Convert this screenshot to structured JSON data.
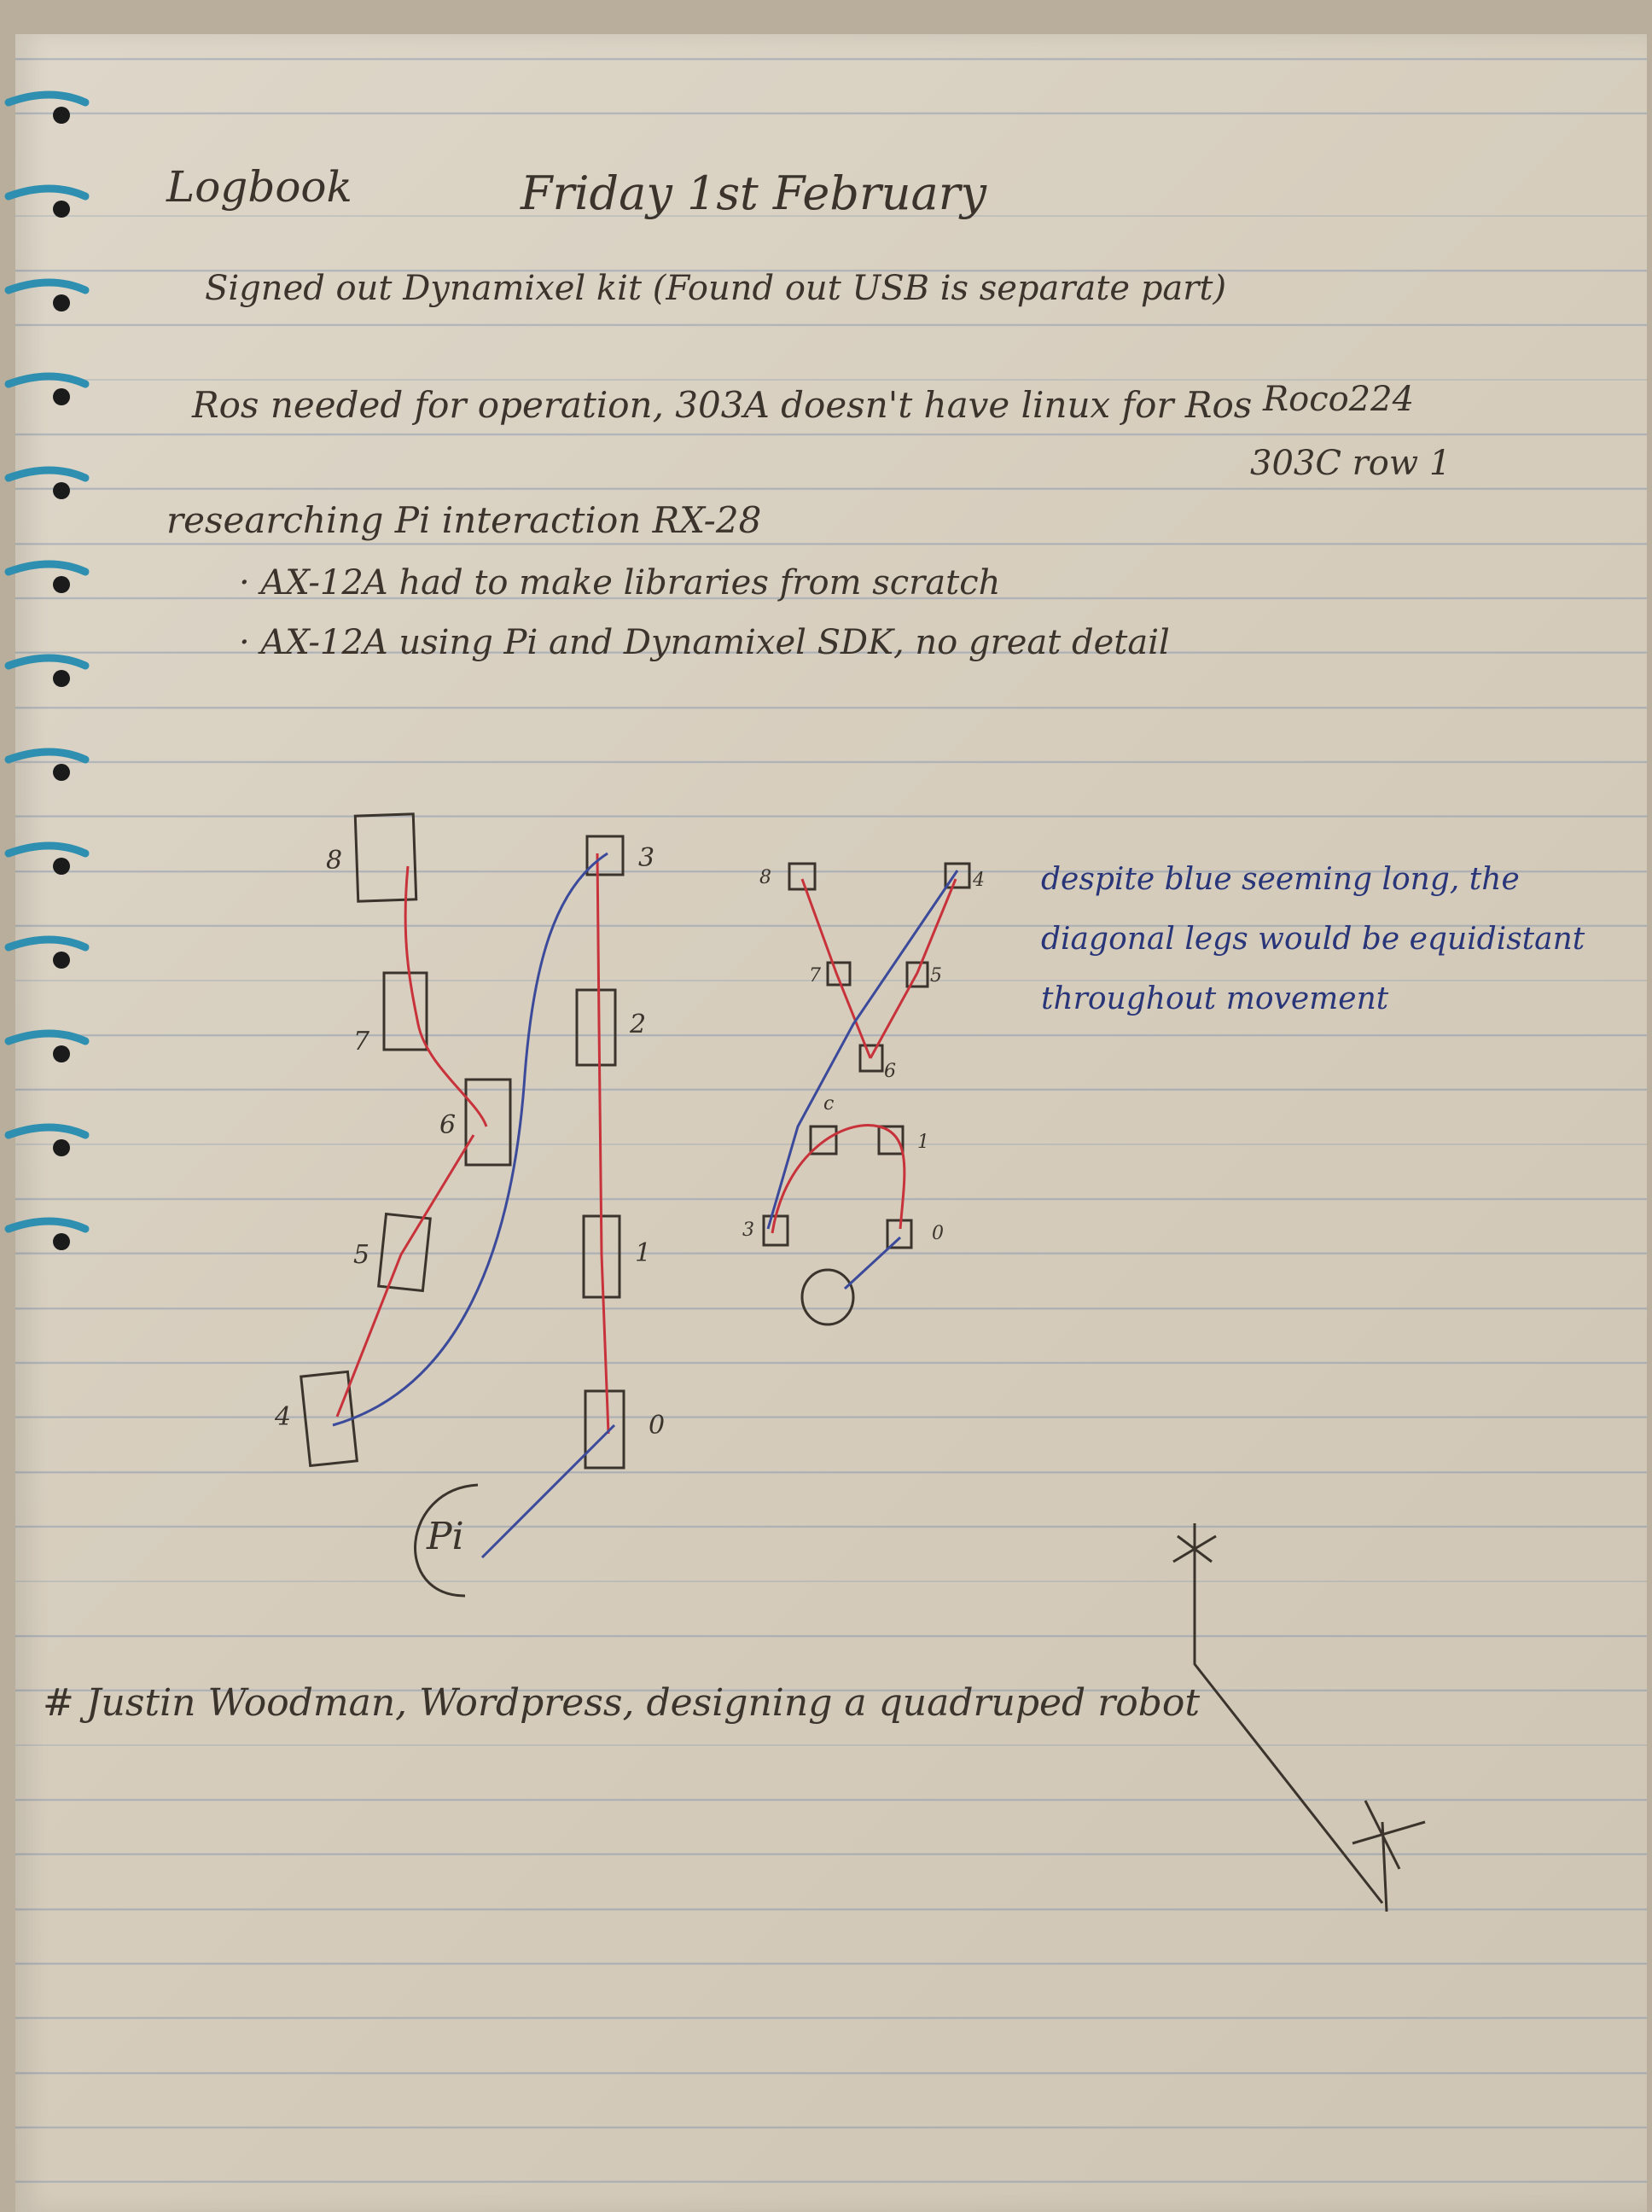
{
  "notebook": {
    "heading": "Logbook",
    "date": "Friday 1st February",
    "lines": [
      "Signed out Dynamixel kit (Found out USB is separate part)",
      "Ros needed for operation, 303A doesn't have linux for Ros",
      "researching Pi interaction RX-28",
      "· AX-12A had to make libraries from scratch",
      "· AX-12A using Pi and Dynamixel SDK, no great detail"
    ],
    "room_note_1": "Roco224",
    "room_note_2": "303C row 1",
    "blue_note": [
      "despite blue seeming long, the",
      "diagonal legs would be equidistant",
      "throughout movement"
    ],
    "pi_label": "Pi",
    "footer": "# Justin Woodman, Wordpress, designing a quadruped robot"
  },
  "diagram": {
    "left_labels": [
      "8",
      "7",
      "6",
      "5",
      "4"
    ],
    "right_labels": [
      "3",
      "2",
      "1",
      "0"
    ],
    "small_labels_left": [
      "8",
      "7",
      "6"
    ],
    "small_labels_right": [
      "4",
      "5",
      "1",
      "0"
    ],
    "small_extra": [
      "c",
      "3"
    ]
  },
  "colors": {
    "paper": "#d9d1c2",
    "pencil": "#3b342c",
    "red_wire": "#c8323a",
    "blue_wire": "#3b4a9a",
    "spiral": "#2f8fb0"
  }
}
